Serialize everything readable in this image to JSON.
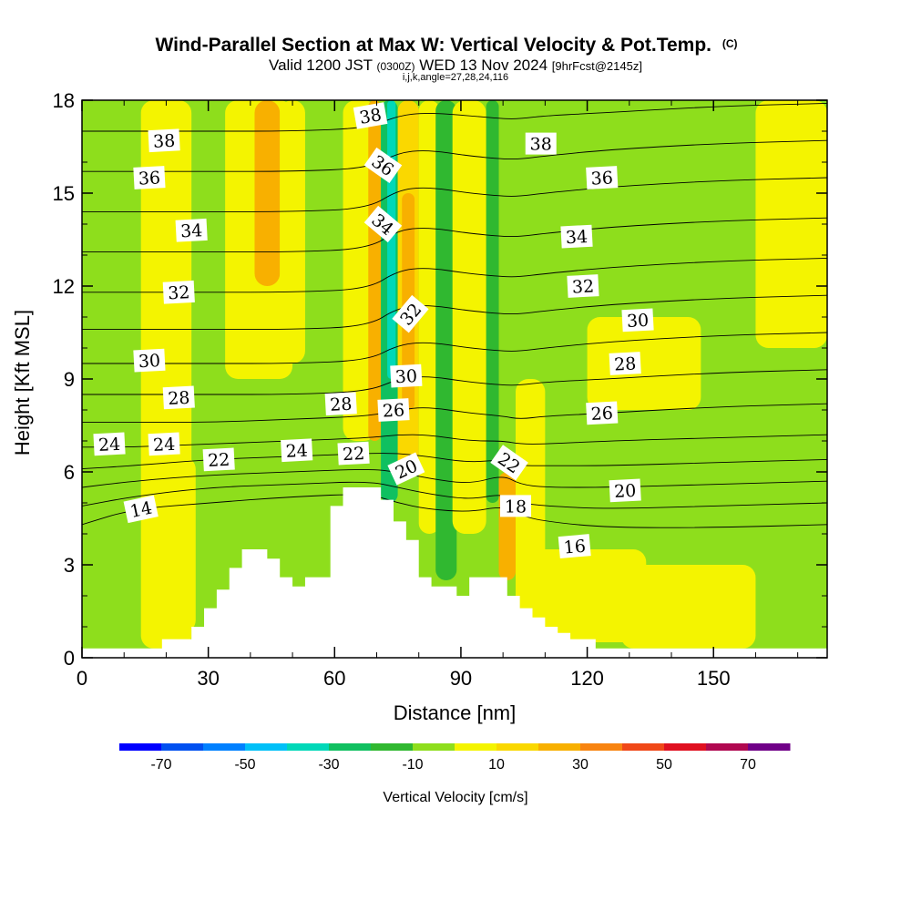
{
  "title": {
    "main": "Wind-Parallel Section at Max W: Vertical Velocity & Pot.Temp.",
    "copyright": "(C)",
    "valid_prefix": "Valid 1200 JST",
    "valid_utc": "(0300Z)",
    "valid_date": "WED 13 Nov 2024",
    "forecast": "[9hrFcst@2145z]",
    "indices": "i,j,k,angle=27,28,24,116"
  },
  "chart_data": {
    "type": "heatmap",
    "xlabel": "Distance [nm]",
    "ylabel": "Height [Kft MSL]",
    "xlim": [
      0,
      177
    ],
    "ylim": [
      0,
      18
    ],
    "xticks": [
      0,
      30,
      60,
      90,
      120,
      150
    ],
    "yticks": [
      0,
      3,
      6,
      9,
      12,
      15,
      18
    ],
    "colorbar": {
      "title": "Vertical Velocity [cm/s]",
      "tick_labels": [
        "-70",
        "-50",
        "-30",
        "-10",
        "10",
        "30",
        "50",
        "70"
      ],
      "tick_values": [
        -70,
        -50,
        -30,
        -10,
        10,
        30,
        50,
        70
      ],
      "bins": [
        {
          "from": -80,
          "to": -70,
          "color": "#0000ff"
        },
        {
          "from": -70,
          "to": -60,
          "color": "#0050f0"
        },
        {
          "from": -60,
          "to": -50,
          "color": "#0080ff"
        },
        {
          "from": -50,
          "to": -40,
          "color": "#00c0f8"
        },
        {
          "from": -40,
          "to": -30,
          "color": "#00d8b8"
        },
        {
          "from": -30,
          "to": -20,
          "color": "#10c060"
        },
        {
          "from": -20,
          "to": -10,
          "color": "#30b830"
        },
        {
          "from": -10,
          "to": 0,
          "color": "#8ede1c"
        },
        {
          "from": 0,
          "to": 10,
          "color": "#f4f400"
        },
        {
          "from": 10,
          "to": 20,
          "color": "#fad800"
        },
        {
          "from": 20,
          "to": 30,
          "color": "#f8b000"
        },
        {
          "from": 30,
          "to": 40,
          "color": "#f88410"
        },
        {
          "from": 40,
          "to": 50,
          "color": "#f04818"
        },
        {
          "from": 50,
          "to": 60,
          "color": "#e01020"
        },
        {
          "from": 60,
          "to": 70,
          "color": "#b00850"
        },
        {
          "from": 70,
          "to": 80,
          "color": "#700088"
        }
      ]
    },
    "vertical_velocity_bands": [
      {
        "x": [
          14,
          26
        ],
        "y": [
          0.3,
          18
        ],
        "w_cm_s": 5
      },
      {
        "x": [
          20,
          27
        ],
        "y": [
          0.8,
          6.5
        ],
        "w_cm_s": 5
      },
      {
        "x": [
          34,
          50
        ],
        "y": [
          9,
          18
        ],
        "w_cm_s": 5
      },
      {
        "x": [
          41,
          47
        ],
        "y": [
          12,
          18
        ],
        "w_cm_s": 25
      },
      {
        "x": [
          47,
          53
        ],
        "y": [
          9.5,
          18
        ],
        "w_cm_s": 5
      },
      {
        "x": [
          62,
          70
        ],
        "y": [
          7,
          18
        ],
        "w_cm_s": 5
      },
      {
        "x": [
          68,
          71
        ],
        "y": [
          7,
          18
        ],
        "w_cm_s": 25
      },
      {
        "x": [
          71,
          75
        ],
        "y": [
          5,
          18
        ],
        "w_cm_s": -25
      },
      {
        "x": [
          72.5,
          74.5
        ],
        "y": [
          9,
          18
        ],
        "w_cm_s": -35
      },
      {
        "x": [
          75,
          80
        ],
        "y": [
          6,
          18
        ],
        "w_cm_s": 15
      },
      {
        "x": [
          76,
          79
        ],
        "y": [
          8,
          15
        ],
        "w_cm_s": 25
      },
      {
        "x": [
          80,
          85
        ],
        "y": [
          4,
          18
        ],
        "w_cm_s": 5
      },
      {
        "x": [
          84,
          89
        ],
        "y": [
          2.5,
          18
        ],
        "w_cm_s": -15
      },
      {
        "x": [
          88,
          96
        ],
        "y": [
          4,
          18
        ],
        "w_cm_s": 5
      },
      {
        "x": [
          96,
          99
        ],
        "y": [
          5,
          18
        ],
        "w_cm_s": -15
      },
      {
        "x": [
          99,
          103
        ],
        "y": [
          2.5,
          6
        ],
        "w_cm_s": 25
      },
      {
        "x": [
          103,
          110
        ],
        "y": [
          0.5,
          9
        ],
        "w_cm_s": 5
      },
      {
        "x": [
          106,
          134
        ],
        "y": [
          0.5,
          3.5
        ],
        "w_cm_s": 5
      },
      {
        "x": [
          128,
          160
        ],
        "y": [
          0.3,
          3
        ],
        "w_cm_s": 5
      },
      {
        "x": [
          120,
          147
        ],
        "y": [
          8,
          11
        ],
        "w_cm_s": 5
      },
      {
        "x": [
          160,
          177
        ],
        "y": [
          10,
          18
        ],
        "w_cm_s": 5
      }
    ],
    "terrain_kft": {
      "x": [
        0,
        19,
        19,
        26,
        26,
        29,
        29,
        32,
        32,
        35,
        35,
        38,
        38,
        44,
        44,
        47,
        47,
        50,
        50,
        53,
        53,
        59,
        59,
        62,
        62,
        65,
        65,
        71,
        71,
        74,
        74,
        77,
        77,
        80,
        80,
        83,
        83,
        86,
        86,
        89,
        89,
        92,
        92,
        95,
        95,
        101,
        101,
        104,
        104,
        107,
        107,
        110,
        110,
        113,
        113,
        116,
        116,
        122,
        122,
        125,
        125,
        177
      ],
      "y": [
        0.3,
        0.3,
        0.6,
        0.6,
        1.0,
        1.0,
        1.6,
        1.6,
        2.2,
        2.2,
        2.9,
        2.9,
        3.5,
        3.5,
        3.2,
        3.2,
        2.6,
        2.6,
        2.3,
        2.3,
        2.6,
        2.6,
        4.9,
        4.9,
        5.5,
        5.5,
        5.5,
        5.5,
        5.1,
        5.1,
        4.4,
        4.4,
        3.8,
        3.8,
        2.6,
        2.6,
        2.3,
        2.3,
        2.3,
        2.3,
        2.0,
        2.0,
        2.6,
        2.6,
        2.6,
        2.6,
        2.0,
        2.0,
        1.6,
        1.6,
        1.3,
        1.3,
        1.0,
        1.0,
        0.8,
        0.8,
        0.6,
        0.6,
        0.3,
        0.3,
        0.3,
        0.3
      ]
    },
    "theta_contours": [
      {
        "x": [
          0,
          12,
          30,
          50,
          68,
          75,
          82,
          92,
          100,
          104,
          110,
          125,
          150,
          177
        ],
        "y": [
          4.3,
          4.8,
          5.0,
          5.2,
          5.3,
          5.0,
          4.8,
          4.7,
          4.9,
          4.6,
          4.4,
          4.2,
          4.2,
          4.3
        ]
      },
      {
        "x": [
          0,
          12,
          30,
          50,
          68,
          75,
          82,
          92,
          100,
          104,
          110,
          125,
          150,
          177
        ],
        "y": [
          4.9,
          5.2,
          5.5,
          5.6,
          5.7,
          5.5,
          5.3,
          5.1,
          5.3,
          5.0,
          4.9,
          4.8,
          4.9,
          5.0
        ]
      },
      {
        "x": [
          0,
          12,
          30,
          50,
          68,
          75,
          82,
          92,
          100,
          104,
          110,
          125,
          150,
          177
        ],
        "y": [
          5.5,
          5.7,
          5.9,
          6.0,
          6.1,
          6.0,
          5.8,
          5.6,
          5.9,
          5.6,
          5.5,
          5.5,
          5.6,
          5.7
        ]
      },
      {
        "x": [
          0,
          12,
          30,
          50,
          68,
          75,
          82,
          92,
          100,
          104,
          110,
          125,
          150,
          177
        ],
        "y": [
          6.1,
          6.2,
          6.4,
          6.5,
          6.6,
          6.6,
          6.5,
          6.3,
          6.4,
          6.2,
          6.2,
          6.2,
          6.3,
          6.4
        ]
      },
      {
        "x": [
          0,
          12,
          30,
          50,
          68,
          75,
          82,
          92,
          100,
          104,
          110,
          125,
          150,
          177
        ],
        "y": [
          6.8,
          6.8,
          6.9,
          7.0,
          7.1,
          7.2,
          7.2,
          7.0,
          7.0,
          6.9,
          6.9,
          7.0,
          7.1,
          7.2
        ]
      },
      {
        "x": [
          0,
          12,
          30,
          50,
          68,
          75,
          82,
          92,
          100,
          104,
          110,
          125,
          150,
          177
        ],
        "y": [
          7.6,
          7.6,
          7.6,
          7.7,
          7.8,
          8.0,
          8.1,
          7.9,
          7.8,
          7.7,
          7.8,
          7.9,
          8.1,
          8.2
        ]
      },
      {
        "x": [
          0,
          12,
          30,
          50,
          68,
          75,
          82,
          92,
          100,
          104,
          110,
          125,
          150,
          177
        ],
        "y": [
          8.5,
          8.5,
          8.5,
          8.5,
          8.6,
          9.0,
          9.1,
          8.9,
          8.8,
          8.8,
          8.9,
          9.0,
          9.2,
          9.3
        ]
      },
      {
        "x": [
          0,
          12,
          30,
          50,
          68,
          75,
          82,
          92,
          100,
          104,
          110,
          125,
          150,
          177
        ],
        "y": [
          9.5,
          9.5,
          9.5,
          9.5,
          9.6,
          10.1,
          10.2,
          10.0,
          9.9,
          9.9,
          10.0,
          10.2,
          10.4,
          10.5
        ]
      },
      {
        "x": [
          0,
          12,
          30,
          50,
          68,
          75,
          82,
          92,
          100,
          104,
          110,
          125,
          150,
          177
        ],
        "y": [
          10.6,
          10.6,
          10.6,
          10.6,
          10.7,
          11.3,
          11.4,
          11.2,
          11.1,
          11.1,
          11.2,
          11.4,
          11.6,
          11.7
        ]
      },
      {
        "x": [
          0,
          12,
          30,
          50,
          68,
          75,
          82,
          92,
          100,
          104,
          110,
          125,
          150,
          177
        ],
        "y": [
          11.8,
          11.8,
          11.8,
          11.8,
          11.9,
          12.5,
          12.6,
          12.4,
          12.3,
          12.3,
          12.4,
          12.6,
          12.8,
          12.9
        ]
      },
      {
        "x": [
          0,
          12,
          30,
          50,
          68,
          75,
          82,
          92,
          100,
          104,
          110,
          125,
          150,
          177
        ],
        "y": [
          13.1,
          13.1,
          13.1,
          13.1,
          13.2,
          13.8,
          13.9,
          13.7,
          13.6,
          13.6,
          13.7,
          13.9,
          14.1,
          14.2
        ]
      },
      {
        "x": [
          0,
          12,
          30,
          50,
          68,
          75,
          82,
          92,
          100,
          104,
          110,
          125,
          150,
          177
        ],
        "y": [
          14.4,
          14.4,
          14.4,
          14.4,
          14.5,
          15.1,
          15.2,
          15.0,
          14.9,
          14.9,
          15.0,
          15.2,
          15.4,
          15.5
        ]
      },
      {
        "x": [
          0,
          12,
          30,
          50,
          68,
          75,
          82,
          92,
          100,
          104,
          110,
          125,
          150,
          177
        ],
        "y": [
          15.7,
          15.7,
          15.7,
          15.7,
          15.8,
          16.3,
          16.4,
          16.2,
          16.1,
          16.1,
          16.2,
          16.4,
          16.6,
          16.7
        ]
      },
      {
        "x": [
          0,
          12,
          30,
          50,
          68,
          75,
          82,
          92,
          100,
          104,
          110,
          125,
          150,
          177
        ],
        "y": [
          17.0,
          17.0,
          17.0,
          17.0,
          17.1,
          17.5,
          17.6,
          17.5,
          17.4,
          17.4,
          17.5,
          17.6,
          17.8,
          17.9
        ]
      }
    ],
    "contour_labels": [
      {
        "text": "38",
        "x": 19.5,
        "y": 16.7,
        "angle": -3
      },
      {
        "text": "36",
        "x": 16,
        "y": 15.5,
        "angle": -3
      },
      {
        "text": "34",
        "x": 26,
        "y": 13.8,
        "angle": -3
      },
      {
        "text": "32",
        "x": 23,
        "y": 11.8,
        "angle": -3
      },
      {
        "text": "30",
        "x": 16,
        "y": 9.6,
        "angle": -3
      },
      {
        "text": "28",
        "x": 23,
        "y": 8.4,
        "angle": -3
      },
      {
        "text": "24",
        "x": 6.5,
        "y": 6.9,
        "angle": -3
      },
      {
        "text": "24",
        "x": 19.5,
        "y": 6.9,
        "angle": -3
      },
      {
        "text": "22",
        "x": 32.5,
        "y": 6.4,
        "angle": -3
      },
      {
        "text": "24",
        "x": 51,
        "y": 6.7,
        "angle": -3
      },
      {
        "text": "22",
        "x": 64.5,
        "y": 6.6,
        "angle": -3
      },
      {
        "text": "28",
        "x": 61.5,
        "y": 8.2,
        "angle": -3
      },
      {
        "text": "26",
        "x": 74,
        "y": 8.0,
        "angle": -3
      },
      {
        "text": "30",
        "x": 77,
        "y": 9.1,
        "angle": -3
      },
      {
        "text": "32",
        "x": 78,
        "y": 11.1,
        "angle": -50
      },
      {
        "text": "34",
        "x": 71.5,
        "y": 14.0,
        "angle": 40
      },
      {
        "text": "36",
        "x": 71.5,
        "y": 15.9,
        "angle": 35
      },
      {
        "text": "38",
        "x": 68.5,
        "y": 17.5,
        "angle": -10
      },
      {
        "text": "20",
        "x": 77,
        "y": 6.1,
        "angle": -25
      },
      {
        "text": "22",
        "x": 101.5,
        "y": 6.3,
        "angle": 35
      },
      {
        "text": "18",
        "x": 103,
        "y": 4.9,
        "angle": 0
      },
      {
        "text": "16",
        "x": 117,
        "y": 3.6,
        "angle": -5
      },
      {
        "text": "38",
        "x": 109,
        "y": 16.6,
        "angle": 0
      },
      {
        "text": "36",
        "x": 123.5,
        "y": 15.5,
        "angle": -3
      },
      {
        "text": "34",
        "x": 117.5,
        "y": 13.6,
        "angle": -3
      },
      {
        "text": "32",
        "x": 119,
        "y": 12.0,
        "angle": -3
      },
      {
        "text": "30",
        "x": 132,
        "y": 10.9,
        "angle": -3
      },
      {
        "text": "28",
        "x": 129,
        "y": 9.5,
        "angle": -3
      },
      {
        "text": "26",
        "x": 123.5,
        "y": 7.9,
        "angle": -3
      },
      {
        "text": "20",
        "x": 129,
        "y": 5.4,
        "angle": -3
      },
      {
        "text": "14",
        "x": 14,
        "y": 4.8,
        "angle": -12
      }
    ]
  }
}
